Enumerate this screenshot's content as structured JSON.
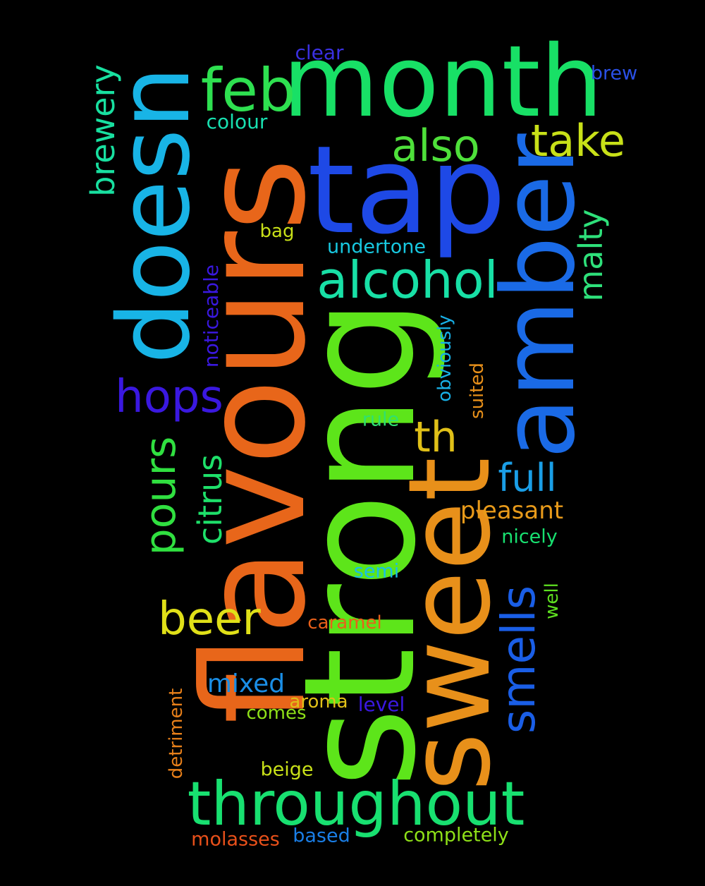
{
  "words": [
    {
      "text": "strong",
      "color": "#5de51a"
    },
    {
      "text": "flavours",
      "color": "#e8661a"
    },
    {
      "text": "sweet",
      "color": "#e8901a"
    },
    {
      "text": "tap",
      "color": "#1e49e6"
    },
    {
      "text": "month",
      "color": "#18e066"
    },
    {
      "text": "amber",
      "color": "#1a6ae6"
    },
    {
      "text": "doesn",
      "color": "#18b4e6"
    },
    {
      "text": "feb",
      "color": "#2ee050"
    },
    {
      "text": "throughout",
      "color": "#18e070"
    },
    {
      "text": "alcohol",
      "color": "#18e0a6"
    },
    {
      "text": "also",
      "color": "#4ee03a"
    },
    {
      "text": "take",
      "color": "#c8e018"
    },
    {
      "text": "smells",
      "color": "#1a5ee6"
    },
    {
      "text": "hops",
      "color": "#3a18e0"
    },
    {
      "text": "beer",
      "color": "#e0e018"
    },
    {
      "text": "pours",
      "color": "#30e040"
    },
    {
      "text": "citrus",
      "color": "#1ee06a"
    },
    {
      "text": "brewery",
      "color": "#18e0a0"
    },
    {
      "text": "full",
      "color": "#1a9ee6"
    },
    {
      "text": "malty",
      "color": "#2ee07a"
    },
    {
      "text": "th",
      "color": "#e0c018"
    },
    {
      "text": "pleasant",
      "color": "#e89a1a"
    },
    {
      "text": "mixed",
      "color": "#1a8ee6"
    },
    {
      "text": "noticeable",
      "color": "#3a18e0"
    },
    {
      "text": "obviously",
      "color": "#18b0e6"
    },
    {
      "text": "suited",
      "color": "#e8901a"
    },
    {
      "text": "undertone",
      "color": "#18c8e0"
    },
    {
      "text": "colour",
      "color": "#18e0b0"
    },
    {
      "text": "clear",
      "color": "#3a30e0"
    },
    {
      "text": "brew",
      "color": "#2a50e6"
    },
    {
      "text": "bag",
      "color": "#c8e018"
    },
    {
      "text": "rule",
      "color": "#30e070"
    },
    {
      "text": "nicely",
      "color": "#18e070"
    },
    {
      "text": "semi",
      "color": "#18c0e6"
    },
    {
      "text": "well",
      "color": "#5ee020"
    },
    {
      "text": "caramel",
      "color": "#e8601a"
    },
    {
      "text": "detriment",
      "color": "#e8801a"
    },
    {
      "text": "aroma",
      "color": "#e0c018"
    },
    {
      "text": "level",
      "color": "#3a18e0"
    },
    {
      "text": "comes",
      "color": "#8ee018"
    },
    {
      "text": "beige",
      "color": "#c8e018"
    },
    {
      "text": "molasses",
      "color": "#e8501a"
    },
    {
      "text": "based",
      "color": "#1a7ee6"
    },
    {
      "text": "completely",
      "color": "#8ee018"
    }
  ]
}
